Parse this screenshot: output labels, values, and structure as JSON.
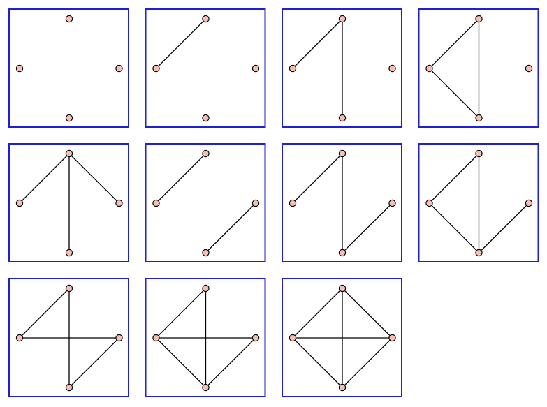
{
  "diagram": {
    "frame_color": "#1f1fd6",
    "node_fill": "#f6bfb2",
    "edge_color": "#000000",
    "node_labels": [
      "top",
      "left",
      "right",
      "bottom"
    ],
    "graphs": [
      {
        "edges": []
      },
      {
        "edges": [
          [
            "left",
            "top"
          ]
        ]
      },
      {
        "edges": [
          [
            "left",
            "top"
          ],
          [
            "top",
            "bottom"
          ]
        ]
      },
      {
        "edges": [
          [
            "left",
            "top"
          ],
          [
            "top",
            "bottom"
          ],
          [
            "left",
            "bottom"
          ]
        ]
      },
      {
        "edges": [
          [
            "left",
            "top"
          ],
          [
            "top",
            "bottom"
          ],
          [
            "top",
            "right"
          ]
        ]
      },
      {
        "edges": [
          [
            "left",
            "top"
          ],
          [
            "bottom",
            "right"
          ]
        ]
      },
      {
        "edges": [
          [
            "left",
            "top"
          ],
          [
            "top",
            "bottom"
          ],
          [
            "bottom",
            "right"
          ]
        ]
      },
      {
        "edges": [
          [
            "left",
            "top"
          ],
          [
            "top",
            "bottom"
          ],
          [
            "left",
            "bottom"
          ],
          [
            "bottom",
            "right"
          ]
        ]
      },
      {
        "edges": [
          [
            "left",
            "top"
          ],
          [
            "top",
            "bottom"
          ],
          [
            "left",
            "right"
          ],
          [
            "bottom",
            "right"
          ]
        ]
      },
      {
        "edges": [
          [
            "left",
            "top"
          ],
          [
            "top",
            "bottom"
          ],
          [
            "left",
            "right"
          ],
          [
            "left",
            "bottom"
          ],
          [
            "bottom",
            "right"
          ]
        ]
      },
      {
        "edges": [
          [
            "left",
            "top"
          ],
          [
            "top",
            "right"
          ],
          [
            "top",
            "bottom"
          ],
          [
            "left",
            "right"
          ],
          [
            "left",
            "bottom"
          ],
          [
            "bottom",
            "right"
          ]
        ]
      }
    ]
  }
}
